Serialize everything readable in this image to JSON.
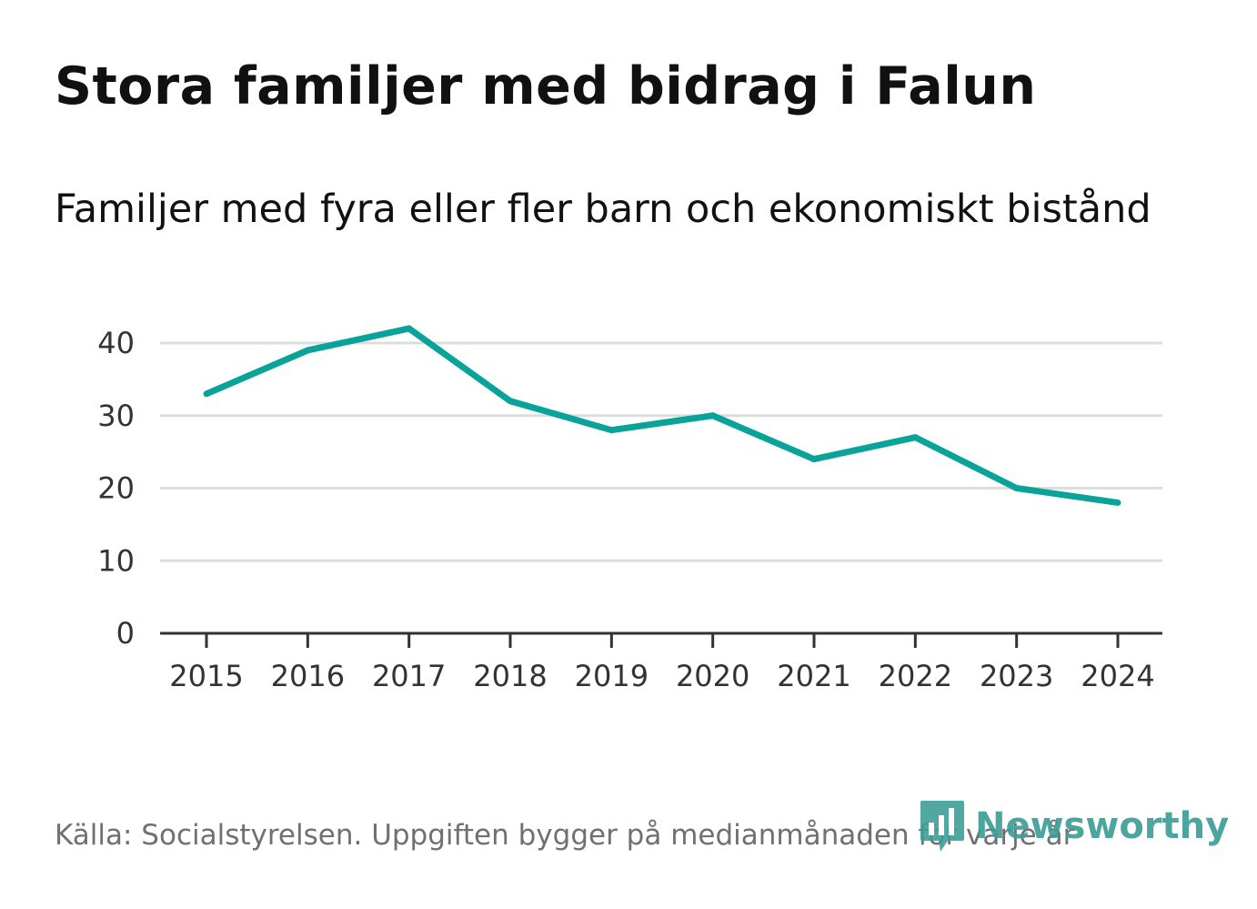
{
  "title": "Stora familjer med bidrag i Falun",
  "subtitle": "Familjer med fyra eller fler barn och ekonomiskt bistånd",
  "source": "Källa: Socialstyrelsen. Uppgiften bygger på medianmånaden för varje år",
  "brand": {
    "name": "Newsworthy",
    "icon": "newsworthy-logo-icon",
    "color": "#3d9e96"
  },
  "colors": {
    "line": "#0aa39a",
    "grid": "#dddddd",
    "axis": "#333333"
  },
  "chart_data": {
    "type": "line",
    "title": "Stora familjer med bidrag i Falun",
    "subtitle": "Familjer med fyra eller fler barn och ekonomiskt bistånd",
    "xlabel": "",
    "ylabel": "",
    "categories": [
      "2015",
      "2016",
      "2017",
      "2018",
      "2019",
      "2020",
      "2021",
      "2022",
      "2023",
      "2024"
    ],
    "series": [
      {
        "name": "Familjer med fyra eller fler barn och ekonomiskt bistånd",
        "values": [
          33,
          39,
          42,
          32,
          28,
          30,
          24,
          27,
          20,
          18
        ]
      }
    ],
    "ylim": [
      0,
      40
    ],
    "yticks": [
      0,
      10,
      20,
      30,
      40
    ],
    "grid": true,
    "legend": "none"
  }
}
